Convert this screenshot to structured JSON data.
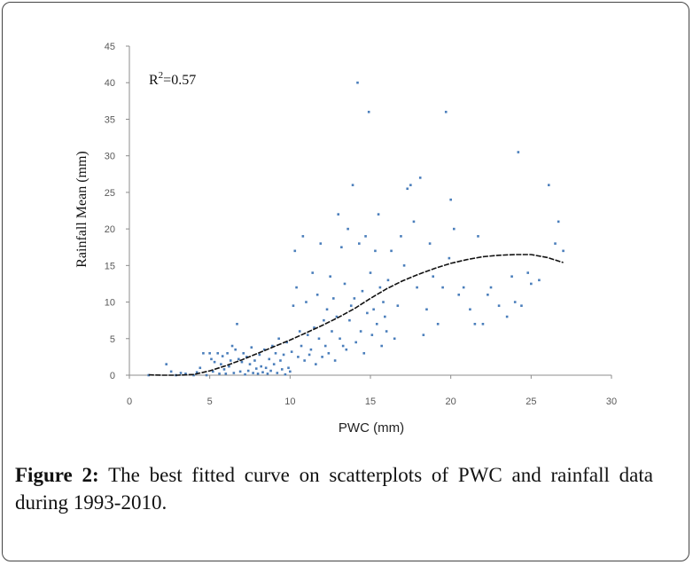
{
  "caption": {
    "label": "Figure 2:",
    "text": "The best fitted curve on scatterplots of PWC and rainfall data during 1993-2010."
  },
  "chart_data": {
    "type": "scatter",
    "xlabel": "PWC (mm)",
    "ylabel": "Rainfall Mean (mm)",
    "xlim": [
      0,
      30
    ],
    "ylim": [
      0,
      45
    ],
    "x_ticks": [
      0,
      5,
      10,
      15,
      20,
      25,
      30
    ],
    "y_ticks": [
      0,
      5,
      10,
      15,
      20,
      25,
      30,
      35,
      40,
      45
    ],
    "grid": false,
    "annotation": {
      "r2_base": "R",
      "r2_exp": "2",
      "r2_value": "=0.57"
    },
    "point_color": "#4a7ebb",
    "curve_color": "#111111",
    "points": [
      [
        1.2,
        0
      ],
      [
        2.3,
        1.5
      ],
      [
        2.6,
        0.5
      ],
      [
        2.9,
        0
      ],
      [
        3.2,
        0.3
      ],
      [
        3.5,
        0.2
      ],
      [
        4.0,
        0
      ],
      [
        4.2,
        0.4
      ],
      [
        4.4,
        1.0
      ],
      [
        4.6,
        3.0
      ],
      [
        4.8,
        0
      ],
      [
        5.0,
        3.0
      ],
      [
        5.1,
        2.2
      ],
      [
        5.2,
        0.5
      ],
      [
        5.3,
        1.8
      ],
      [
        5.5,
        3.0
      ],
      [
        5.6,
        0.2
      ],
      [
        5.7,
        1.5
      ],
      [
        5.8,
        2.6
      ],
      [
        5.9,
        0.8
      ],
      [
        6.0,
        0.2
      ],
      [
        6.1,
        3.0
      ],
      [
        6.2,
        1.2
      ],
      [
        6.3,
        2.0
      ],
      [
        6.4,
        4.0
      ],
      [
        6.5,
        0.3
      ],
      [
        6.6,
        3.5
      ],
      [
        6.7,
        7.0
      ],
      [
        6.8,
        2.2
      ],
      [
        6.9,
        0.5
      ],
      [
        7.0,
        1.8
      ],
      [
        7.1,
        3.0
      ],
      [
        7.2,
        0.1
      ],
      [
        7.3,
        2.5
      ],
      [
        7.4,
        0.6
      ],
      [
        7.5,
        1.5
      ],
      [
        7.6,
        3.8
      ],
      [
        7.7,
        0.3
      ],
      [
        7.8,
        2.0
      ],
      [
        7.9,
        0.9
      ],
      [
        8.0,
        0.2
      ],
      [
        8.1,
        2.8
      ],
      [
        8.2,
        1.2
      ],
      [
        8.3,
        0.4
      ],
      [
        8.4,
        3.5
      ],
      [
        8.5,
        1.0
      ],
      [
        8.6,
        0.2
      ],
      [
        8.7,
        2.2
      ],
      [
        8.8,
        0.6
      ],
      [
        8.9,
        4.0
      ],
      [
        9.0,
        1.5
      ],
      [
        9.1,
        3.0
      ],
      [
        9.2,
        0.3
      ],
      [
        9.3,
        5.0
      ],
      [
        9.4,
        2.0
      ],
      [
        9.5,
        0.8
      ],
      [
        9.6,
        2.8
      ],
      [
        9.7,
        0.1
      ],
      [
        9.8,
        4.5
      ],
      [
        9.9,
        1.0
      ],
      [
        10.0,
        0.5
      ],
      [
        10.1,
        3.2
      ],
      [
        10.2,
        9.5
      ],
      [
        10.3,
        17.0
      ],
      [
        10.4,
        12.0
      ],
      [
        10.5,
        2.5
      ],
      [
        10.6,
        6.0
      ],
      [
        10.7,
        4.0
      ],
      [
        10.8,
        19.0
      ],
      [
        10.9,
        2.0
      ],
      [
        11.0,
        10.0
      ],
      [
        11.1,
        5.5
      ],
      [
        11.2,
        2.8
      ],
      [
        11.3,
        3.5
      ],
      [
        11.4,
        14.0
      ],
      [
        11.5,
        6.5
      ],
      [
        11.6,
        1.5
      ],
      [
        11.7,
        11.0
      ],
      [
        11.8,
        5.0
      ],
      [
        11.9,
        18.0
      ],
      [
        12.0,
        2.5
      ],
      [
        12.1,
        7.5
      ],
      [
        12.2,
        4.0
      ],
      [
        12.3,
        9.0
      ],
      [
        12.4,
        3.0
      ],
      [
        12.5,
        13.5
      ],
      [
        12.6,
        6.0
      ],
      [
        12.7,
        10.5
      ],
      [
        12.8,
        2.0
      ],
      [
        12.9,
        8.0
      ],
      [
        13.0,
        22.0
      ],
      [
        13.1,
        5.0
      ],
      [
        13.2,
        17.5
      ],
      [
        13.3,
        4.0
      ],
      [
        13.4,
        12.5
      ],
      [
        13.5,
        3.5
      ],
      [
        13.6,
        20.0
      ],
      [
        13.7,
        7.5
      ],
      [
        13.8,
        9.5
      ],
      [
        13.9,
        26.0
      ],
      [
        14.0,
        10.5
      ],
      [
        14.1,
        4.5
      ],
      [
        14.2,
        40.0
      ],
      [
        14.3,
        18.0
      ],
      [
        14.4,
        6.0
      ],
      [
        14.5,
        11.5
      ],
      [
        14.6,
        3.0
      ],
      [
        14.7,
        19.0
      ],
      [
        14.8,
        8.5
      ],
      [
        14.9,
        36.0
      ],
      [
        15.0,
        14.0
      ],
      [
        15.1,
        5.5
      ],
      [
        15.2,
        9.0
      ],
      [
        15.3,
        17.0
      ],
      [
        15.4,
        7.0
      ],
      [
        15.5,
        22.0
      ],
      [
        15.6,
        12.0
      ],
      [
        15.7,
        4.0
      ],
      [
        15.8,
        10.0
      ],
      [
        15.9,
        8.0
      ],
      [
        16.0,
        6.0
      ],
      [
        16.1,
        13.0
      ],
      [
        16.3,
        17.0
      ],
      [
        16.5,
        5.0
      ],
      [
        16.7,
        9.5
      ],
      [
        16.9,
        19.0
      ],
      [
        17.1,
        15.0
      ],
      [
        17.3,
        25.5
      ],
      [
        17.5,
        26.0
      ],
      [
        17.7,
        21.0
      ],
      [
        17.9,
        12.0
      ],
      [
        18.1,
        27.0
      ],
      [
        18.3,
        5.5
      ],
      [
        18.5,
        9.0
      ],
      [
        18.7,
        18.0
      ],
      [
        18.9,
        13.5
      ],
      [
        19.2,
        7.0
      ],
      [
        19.5,
        12.0
      ],
      [
        19.7,
        36.0
      ],
      [
        19.9,
        16.0
      ],
      [
        20.0,
        24.0
      ],
      [
        20.2,
        20.0
      ],
      [
        20.5,
        11.0
      ],
      [
        20.8,
        12.0
      ],
      [
        21.2,
        9.0
      ],
      [
        21.5,
        7.0
      ],
      [
        21.7,
        19.0
      ],
      [
        22.0,
        7.0
      ],
      [
        22.3,
        11.0
      ],
      [
        22.5,
        12.0
      ],
      [
        23.0,
        9.5
      ],
      [
        23.5,
        8.0
      ],
      [
        23.8,
        13.5
      ],
      [
        24.0,
        10.0
      ],
      [
        24.2,
        30.5
      ],
      [
        24.4,
        9.5
      ],
      [
        24.8,
        14.0
      ],
      [
        25.0,
        12.5
      ],
      [
        25.5,
        13.0
      ],
      [
        26.1,
        26.0
      ],
      [
        26.5,
        18.0
      ],
      [
        26.7,
        21.0
      ],
      [
        27.0,
        17.0
      ]
    ],
    "curve": [
      [
        1.2,
        0.05
      ],
      [
        2,
        0
      ],
      [
        3,
        0
      ],
      [
        4,
        0.1
      ],
      [
        5,
        0.6
      ],
      [
        6,
        1.3
      ],
      [
        7,
        2.1
      ],
      [
        8,
        3.0
      ],
      [
        9,
        3.9
      ],
      [
        10,
        4.8
      ],
      [
        11,
        5.8
      ],
      [
        12,
        6.8
      ],
      [
        13,
        7.9
      ],
      [
        14,
        9.1
      ],
      [
        15,
        10.5
      ],
      [
        16,
        11.8
      ],
      [
        17,
        12.9
      ],
      [
        18,
        13.8
      ],
      [
        19,
        14.6
      ],
      [
        20,
        15.3
      ],
      [
        21,
        15.8
      ],
      [
        22,
        16.2
      ],
      [
        23,
        16.4
      ],
      [
        24,
        16.5
      ],
      [
        25,
        16.5
      ],
      [
        26,
        16.1
      ],
      [
        27,
        15.4
      ]
    ]
  }
}
